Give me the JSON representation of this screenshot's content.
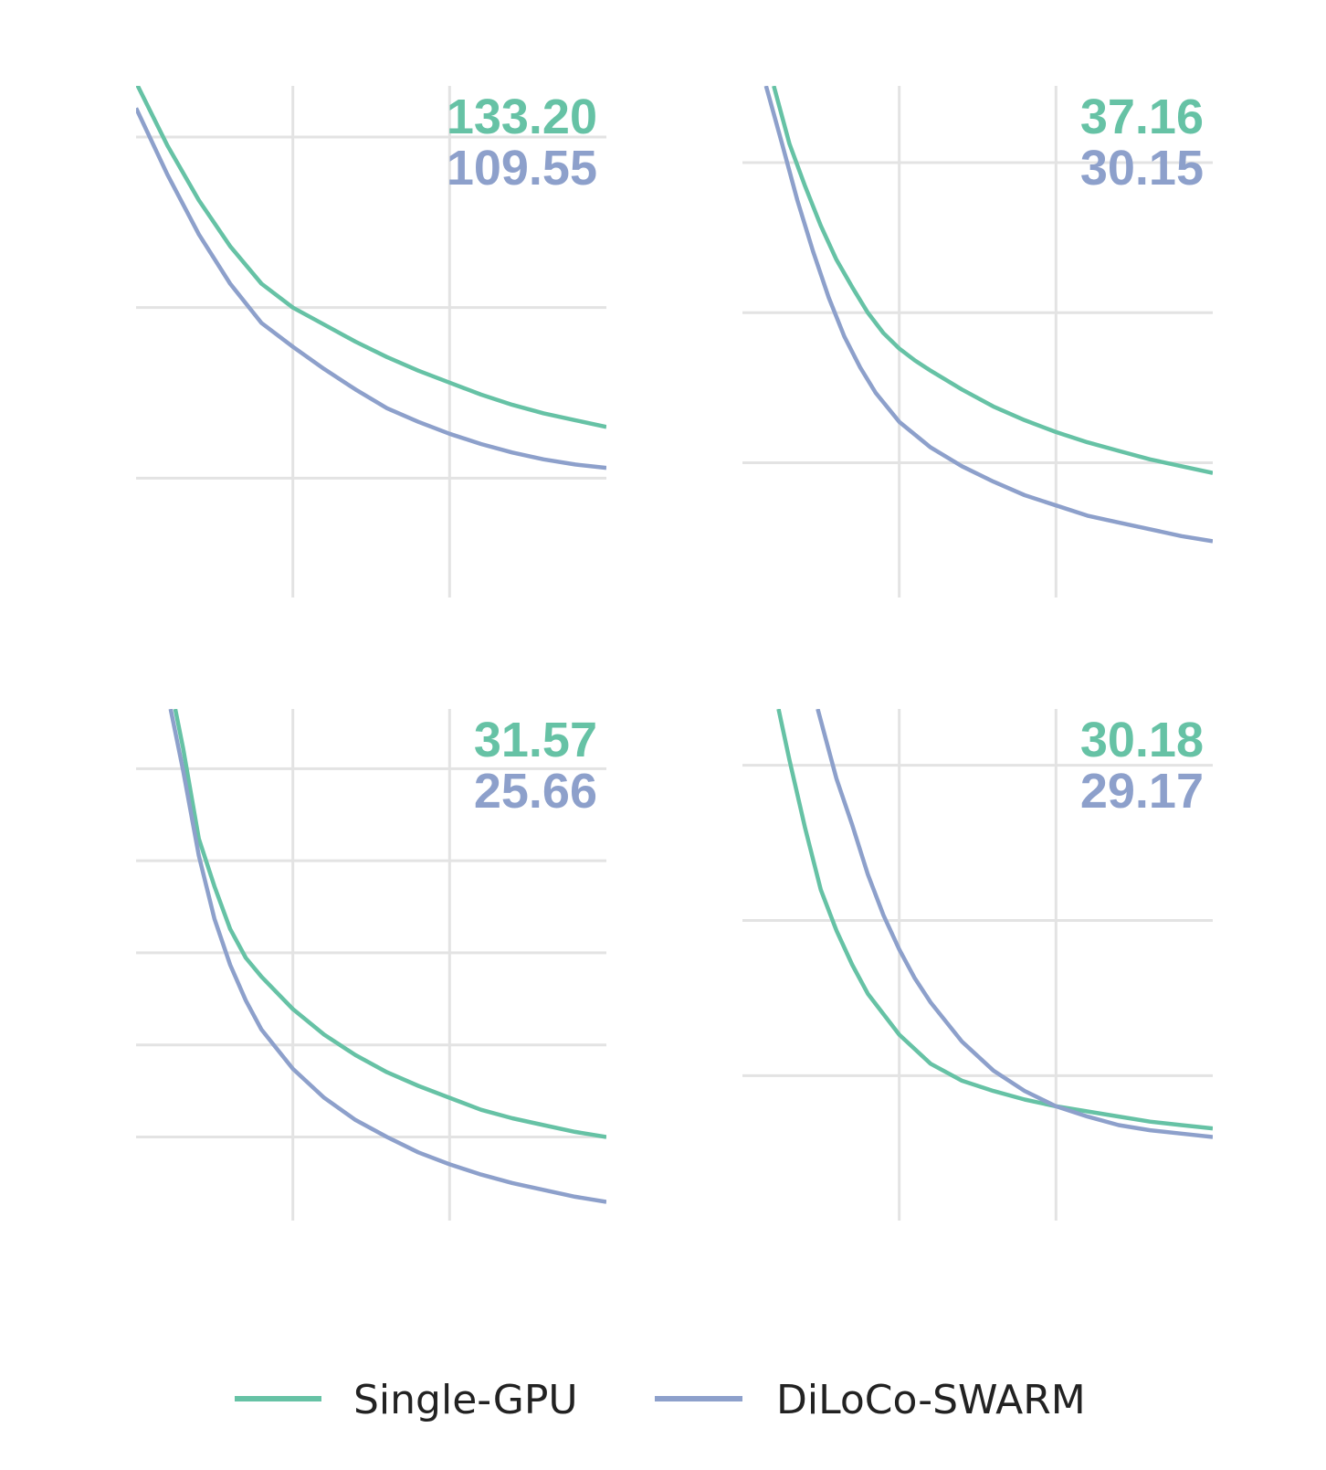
{
  "colors": {
    "single": "#66c2a5",
    "swarm": "#8da0cb",
    "grid": "#e3e3e3"
  },
  "legend": {
    "single_label": "Single-GPU",
    "swarm_label": "DiLoCo-SWARM"
  },
  "chart_data": [
    {
      "type": "line",
      "grid": true,
      "xlim": [
        0,
        3
      ],
      "xticks": [
        1,
        2
      ],
      "ylim": [
        30,
        0
      ],
      "yticks": [
        3,
        13,
        23
      ],
      "final_labels": [
        "133.20",
        "109.55"
      ],
      "series": [
        {
          "name": "Single-GPU",
          "x": [
            0,
            0.2,
            0.4,
            0.6,
            0.8,
            1.0,
            1.2,
            1.4,
            1.6,
            1.8,
            2.0,
            2.2,
            2.4,
            2.6,
            2.8,
            3.0
          ],
          "y": [
            -0.2,
            3.5,
            6.7,
            9.4,
            11.6,
            13.0,
            14.0,
            15.0,
            15.9,
            16.7,
            17.4,
            18.1,
            18.7,
            19.2,
            19.6,
            20.0
          ]
        },
        {
          "name": "DiLoCo-SWARM",
          "x": [
            0,
            0.2,
            0.4,
            0.6,
            0.8,
            1.0,
            1.2,
            1.4,
            1.6,
            1.8,
            2.0,
            2.2,
            2.4,
            2.6,
            2.8,
            3.0
          ],
          "y": [
            1.3,
            5.2,
            8.7,
            11.6,
            13.9,
            15.3,
            16.6,
            17.8,
            18.9,
            19.7,
            20.4,
            21.0,
            21.5,
            21.9,
            22.2,
            22.4
          ]
        }
      ]
    },
    {
      "type": "line",
      "grid": true,
      "xlim": [
        0,
        3
      ],
      "xticks": [
        1,
        2
      ],
      "ylim": [
        30,
        0
      ],
      "yticks": [
        4.5,
        13.3,
        22.1
      ],
      "final_labels": [
        "37.16",
        "30.15"
      ],
      "series": [
        {
          "name": "Single-GPU",
          "x": [
            0.2,
            0.3,
            0.4,
            0.5,
            0.6,
            0.7,
            0.8,
            0.9,
            1.0,
            1.1,
            1.2,
            1.4,
            1.6,
            1.8,
            2.0,
            2.2,
            2.4,
            2.6,
            2.8,
            3.0
          ],
          "y": [
            0.0,
            3.4,
            5.9,
            8.2,
            10.2,
            11.8,
            13.3,
            14.5,
            15.4,
            16.1,
            16.7,
            17.8,
            18.8,
            19.6,
            20.3,
            20.9,
            21.4,
            21.9,
            22.3,
            22.7
          ]
        },
        {
          "name": "DiLoCo-SWARM",
          "x": [
            0.15,
            0.25,
            0.35,
            0.45,
            0.55,
            0.65,
            0.75,
            0.85,
            1.0,
            1.2,
            1.4,
            1.6,
            1.8,
            2.0,
            2.2,
            2.4,
            2.6,
            2.8,
            3.0
          ],
          "y": [
            0.0,
            3.3,
            6.7,
            9.7,
            12.4,
            14.7,
            16.5,
            18.0,
            19.7,
            21.2,
            22.3,
            23.2,
            24.0,
            24.6,
            25.2,
            25.6,
            26.0,
            26.4,
            26.7
          ]
        }
      ]
    },
    {
      "type": "line",
      "grid": true,
      "xlim": [
        0,
        3
      ],
      "xticks": [
        1,
        2
      ],
      "ylim": [
        30,
        0
      ],
      "yticks": [
        3.5,
        8.9,
        14.3,
        19.7,
        25.1
      ],
      "final_labels": [
        "31.57",
        "25.66"
      ],
      "series": [
        {
          "name": "Single-GPU",
          "x": [
            0.25,
            0.3,
            0.4,
            0.5,
            0.6,
            0.7,
            0.8,
            1.0,
            1.2,
            1.4,
            1.6,
            1.8,
            2.0,
            2.2,
            2.4,
            2.6,
            2.8,
            3.0
          ],
          "y": [
            0.0,
            2.3,
            7.6,
            10.4,
            12.9,
            14.6,
            15.7,
            17.6,
            19.1,
            20.3,
            21.3,
            22.1,
            22.8,
            23.5,
            24.0,
            24.4,
            24.8,
            25.1
          ]
        },
        {
          "name": "DiLoCo-SWARM",
          "x": [
            0.22,
            0.3,
            0.4,
            0.5,
            0.6,
            0.7,
            0.8,
            1.0,
            1.2,
            1.4,
            1.6,
            1.8,
            2.0,
            2.2,
            2.4,
            2.6,
            2.8,
            3.0
          ],
          "y": [
            0.0,
            3.6,
            8.6,
            12.3,
            15.0,
            17.1,
            18.8,
            21.1,
            22.8,
            24.1,
            25.1,
            26.0,
            26.7,
            27.3,
            27.8,
            28.2,
            28.6,
            28.9
          ]
        }
      ]
    },
    {
      "type": "line",
      "grid": true,
      "xlim": [
        0,
        3
      ],
      "xticks": [
        1,
        2
      ],
      "ylim": [
        30,
        0
      ],
      "yticks": [
        3.3,
        12.4,
        21.5
      ],
      "final_labels": [
        "30.18",
        "29.17"
      ],
      "series": [
        {
          "name": "Single-GPU",
          "x": [
            0.23,
            0.3,
            0.4,
            0.5,
            0.6,
            0.7,
            0.8,
            1.0,
            1.2,
            1.4,
            1.6,
            1.8,
            2.0,
            2.2,
            2.4,
            2.6,
            2.8,
            3.0
          ],
          "y": [
            0.0,
            3.0,
            7.0,
            10.6,
            13.0,
            15.0,
            16.7,
            19.1,
            20.8,
            21.8,
            22.4,
            22.9,
            23.3,
            23.6,
            23.9,
            24.2,
            24.4,
            24.6
          ]
        },
        {
          "name": "DiLoCo-SWARM",
          "x": [
            0.48,
            0.6,
            0.7,
            0.8,
            0.9,
            1.0,
            1.1,
            1.2,
            1.4,
            1.6,
            1.8,
            2.0,
            2.2,
            2.4,
            2.6,
            2.8,
            3.0
          ],
          "y": [
            0.0,
            4.1,
            6.8,
            9.7,
            12.1,
            14.1,
            15.8,
            17.2,
            19.5,
            21.2,
            22.4,
            23.3,
            23.9,
            24.4,
            24.7,
            24.9,
            25.1
          ]
        }
      ]
    }
  ]
}
